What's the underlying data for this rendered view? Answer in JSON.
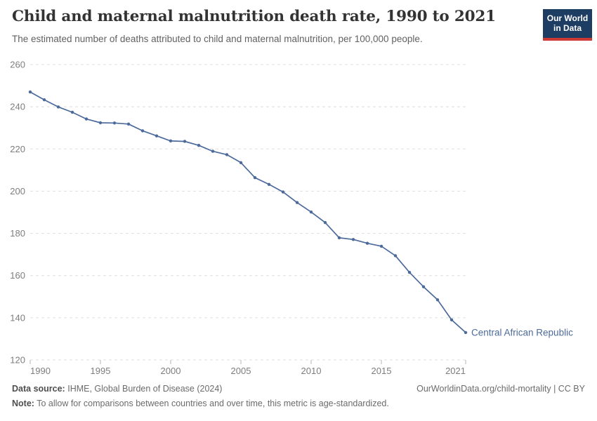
{
  "header": {
    "title": "Child and maternal malnutrition death rate, 1990 to 2021",
    "subtitle": "The estimated number of deaths attributed to child and maternal malnutrition, per 100,000 people.",
    "logo_line1": "Our World",
    "logo_line2": "in Data",
    "logo_bg_color": "#1d3d63",
    "logo_stripe_color": "#cf3a34"
  },
  "footer": {
    "datasource_label": "Data source:",
    "datasource_value": "IHME, Global Burden of Disease (2024)",
    "url": "OurWorldinData.org/child-mortality | CC BY",
    "note_label": "Note:",
    "note_value": "To allow for comparisons between countries and over time, this metric is age-standardized."
  },
  "chart_data": {
    "type": "line",
    "title": "Child and maternal malnutrition death rate, 1990 to 2021",
    "xlabel": "",
    "ylabel": "",
    "x": [
      1990,
      1991,
      1992,
      1993,
      1994,
      1995,
      1996,
      1997,
      1998,
      1999,
      2000,
      2001,
      2002,
      2003,
      2004,
      2005,
      2006,
      2007,
      2008,
      2009,
      2010,
      2011,
      2012,
      2013,
      2014,
      2015,
      2016,
      2017,
      2018,
      2019,
      2020,
      2021
    ],
    "series": [
      {
        "name": "Central African Republic",
        "color": "#4c6a9c",
        "values": [
          247.0,
          243.3,
          239.9,
          237.4,
          234.2,
          232.4,
          232.3,
          231.8,
          228.6,
          226.2,
          223.8,
          223.6,
          221.7,
          218.9,
          217.3,
          213.5,
          206.4,
          203.2,
          199.6,
          194.6,
          190.1,
          185.1,
          177.9,
          177.1,
          175.3,
          173.9,
          169.4,
          161.5,
          154.7,
          148.5,
          139.0,
          133.0
        ]
      }
    ],
    "ylim": [
      120,
      260
    ],
    "yticks": [
      120,
      140,
      160,
      180,
      200,
      220,
      240,
      260
    ],
    "xticks": [
      1990,
      1995,
      2000,
      2005,
      2010,
      2015,
      2021
    ],
    "grid": "horizontal-dashed",
    "gridline_color": "#dddddd",
    "tick_label_color": "#7d7d7d",
    "legend_position": "end-of-line-label"
  }
}
